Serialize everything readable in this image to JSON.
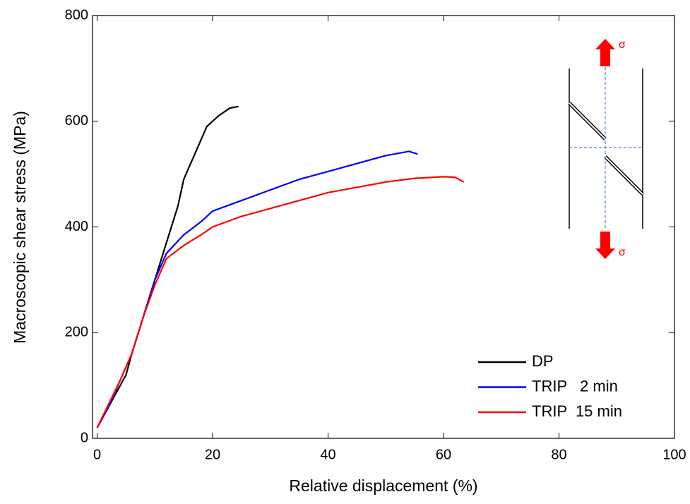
{
  "chart_data": {
    "type": "line",
    "x_label": "Relative displacement (%)",
    "y_label": "Macroscopic shear stress (MPa)",
    "xlim": [
      -0.8,
      100
    ],
    "ylim": [
      0,
      800
    ],
    "xticks": [
      0,
      20,
      40,
      60,
      80,
      100
    ],
    "yticks": [
      0,
      200,
      400,
      600,
      800
    ],
    "legend": "lower right",
    "inset_labels": [
      "σ",
      "σ"
    ],
    "series": [
      {
        "name": "DP",
        "color": "#000000",
        "x": [
          0,
          2,
          4,
          5,
          6,
          8,
          10,
          12,
          14,
          15,
          17,
          19,
          21,
          23,
          24.5
        ],
        "values": [
          20,
          60,
          100,
          120,
          160,
          230,
          300,
          370,
          440,
          490,
          540,
          590,
          610,
          625,
          628
        ]
      },
      {
        "name": "TRIP   2 min",
        "color": "#0000ff",
        "x": [
          0,
          2,
          4,
          6,
          8,
          10,
          12,
          15,
          18,
          20,
          25,
          30,
          35,
          40,
          45,
          50,
          54,
          55.5
        ],
        "values": [
          20,
          60,
          110,
          160,
          230,
          300,
          350,
          385,
          410,
          430,
          450,
          470,
          490,
          505,
          520,
          535,
          543,
          538
        ]
      },
      {
        "name": "TRIP  15 min",
        "color": "#ff0000",
        "x": [
          0,
          2,
          4,
          6,
          8,
          10,
          12,
          15,
          18,
          20,
          25,
          30,
          35,
          40,
          45,
          50,
          55,
          60,
          62,
          63.5
        ],
        "values": [
          20,
          65,
          110,
          160,
          230,
          290,
          340,
          365,
          385,
          400,
          420,
          435,
          450,
          465,
          475,
          485,
          492,
          495,
          494,
          485
        ]
      }
    ]
  }
}
